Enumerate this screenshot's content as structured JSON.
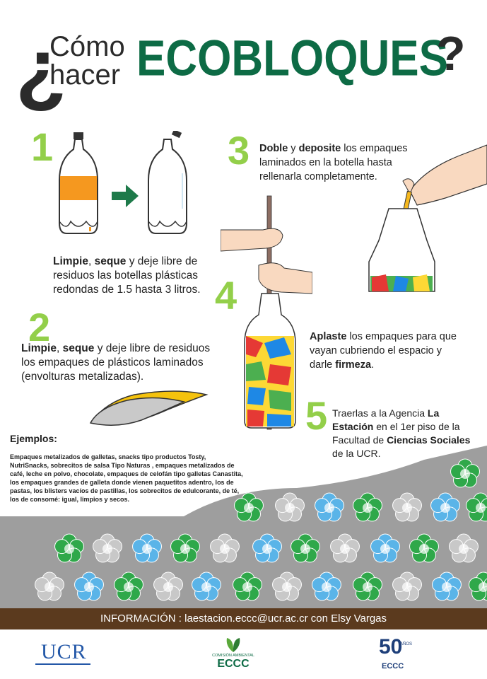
{
  "header": {
    "question_open": "¿",
    "como": "Cómo",
    "hacer": "hacer",
    "title": "ECOBLOQUES",
    "question_close": "?"
  },
  "steps": {
    "s1": {
      "number": "1",
      "bold1": "Limpie",
      "sep": ", ",
      "bold2": "seque",
      "rest": " y deje libre de residuos las botellas plásticas redondas de 1.5 hasta 3 litros."
    },
    "s2": {
      "number": "2",
      "bold1": "Limpie",
      "sep": ", ",
      "bold2": "seque",
      "rest": " y deje libre de residuos los empaques de plásticos laminados (envolturas metalizadas)."
    },
    "s3": {
      "number": "3",
      "bold1": "Doble",
      "mid": " y ",
      "bold2": "deposite",
      "rest": " los empaques laminados en la botella hasta rellenarla completamente."
    },
    "s4": {
      "number": "4",
      "bold1": "Aplaste",
      "rest": " los empaques para que vayan cubriendo el espacio y darle ",
      "bold2": "firmeza",
      "end": "."
    },
    "s5": {
      "number": "5",
      "pre": "Traerlas a la Agencia ",
      "bold1": "La Estación",
      "mid": " en el 1er piso de la Facultad de ",
      "bold2": "Ciencias Sociales",
      "end": " de la UCR."
    }
  },
  "examples": {
    "title": "Ejemplos:",
    "body": "Empaques metalizados de galletas, snacks tipo productos Tosty, NutriSnacks, sobrecitos de salsa Tipo Naturas , empaques metalizados de café, leche en polvo, chocolate, empaques de celofán tipo galletas Canastita, los empaques grandes de galleta donde vienen paquetitos adentro, los de pastas, los blisters vacíos de pastillas, los sobrecitos de edulcorante, de té, los de consomé: igual, limpios y secos."
  },
  "info_bar": "INFORMACIÓN : laestacion.eccc@ucr.ac.cr con Elsy Vargas",
  "footer": {
    "ucr": "UCR",
    "comision_small": "COMISIÓN AMBIENTAL",
    "comision_big": "ECCC",
    "fifty": "50",
    "anos": "AÑOS",
    "eccc": "ECCC"
  },
  "colors": {
    "accent_green": "#0d6b45",
    "step_green": "#93cf4a",
    "bar_brown": "#5b3a1e",
    "ucr_blue": "#2458a8"
  }
}
